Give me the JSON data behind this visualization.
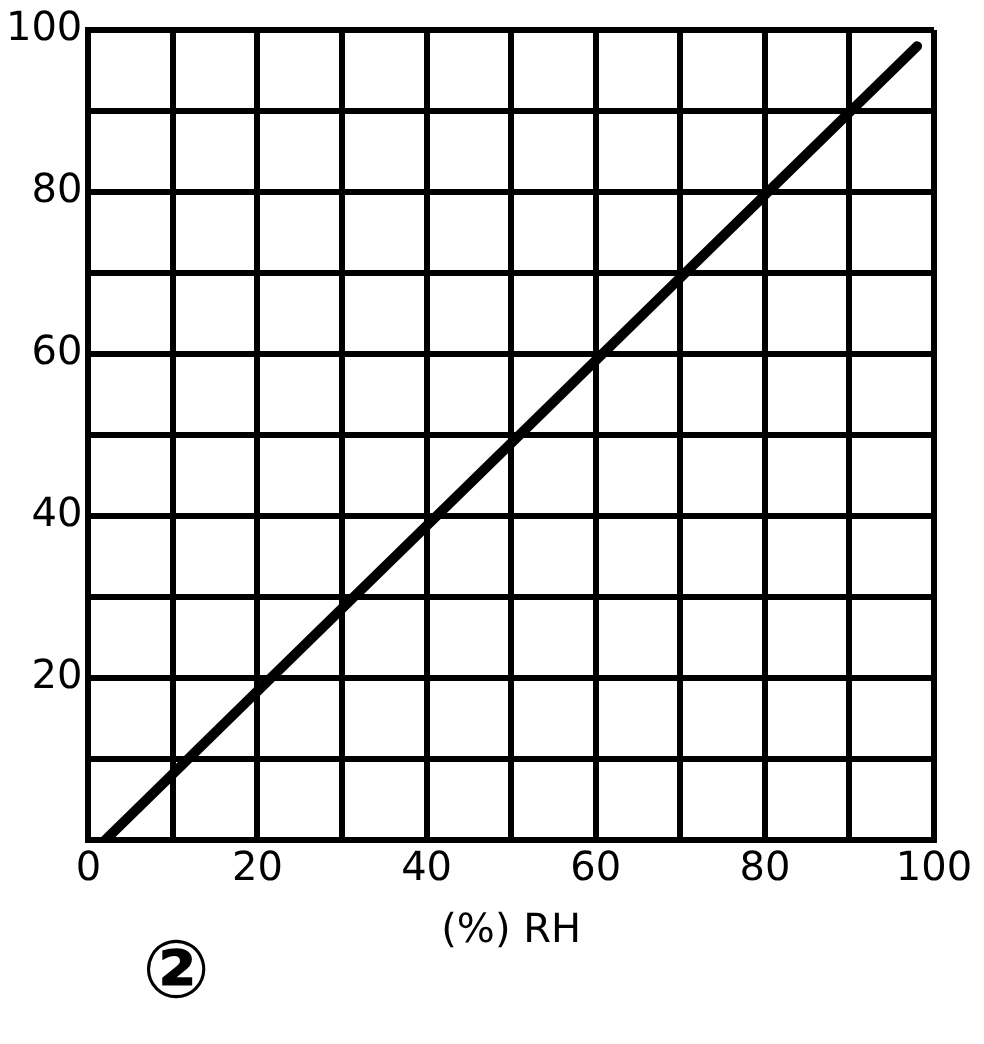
{
  "chart_data": {
    "type": "line",
    "xlabel": "(%) RH",
    "annotations": [
      "②"
    ],
    "x": [
      2,
      98
    ],
    "series": [
      {
        "color": "#000000",
        "values": [
          0,
          98
        ]
      }
    ],
    "xlim": [
      0,
      100
    ],
    "ylim": [
      0,
      100
    ],
    "xticks": [
      0,
      {
        "value": 10,
        "label": null
      },
      20,
      {
        "value": 30,
        "label": null
      },
      40,
      {
        "value": 50,
        "label": null
      },
      60,
      {
        "value": 70,
        "label": null
      },
      80,
      {
        "value": 90,
        "label": null
      },
      100
    ],
    "yticks": [
      {
        "value": 0,
        "label": null
      },
      {
        "value": 10,
        "label": null
      },
      20,
      {
        "value": 30,
        "label": null
      },
      40,
      {
        "value": 50,
        "label": null
      },
      60,
      {
        "value": 70,
        "label": null
      },
      80,
      {
        "value": 90,
        "label": null
      },
      100
    ],
    "grid": true,
    "legend": false,
    "marker": "none",
    "line_style": "solid"
  }
}
